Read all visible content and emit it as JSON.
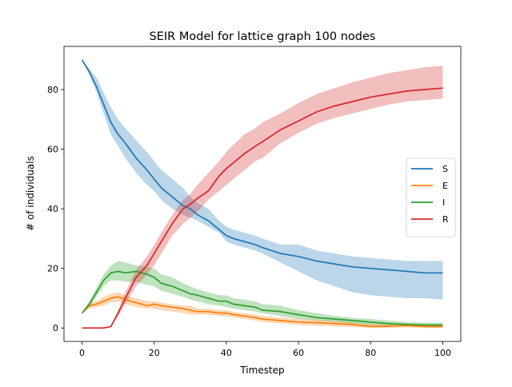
{
  "chart_data": {
    "type": "line",
    "title": "SEIR Model for lattice graph 100 nodes",
    "xlabel": "Timestep",
    "ylabel": "# of individuals",
    "xlim": [
      -5,
      105
    ],
    "ylim": [
      -4.5,
      94.5
    ],
    "xticks": [
      0,
      20,
      40,
      60,
      80,
      100
    ],
    "yticks": [
      0,
      20,
      40,
      60,
      80
    ],
    "grid": false,
    "legend_position": "center-right",
    "series": [
      {
        "name": "S",
        "color": "#1f77b4",
        "x": [
          0,
          2,
          4,
          6,
          8,
          10,
          12,
          15,
          18,
          20,
          22,
          25,
          28,
          30,
          32,
          35,
          38,
          40,
          42,
          45,
          48,
          50,
          55,
          60,
          65,
          70,
          75,
          80,
          85,
          90,
          95,
          100
        ],
        "y": [
          90,
          86,
          81,
          75,
          69,
          65,
          62,
          57,
          53,
          50,
          47,
          44,
          41,
          40,
          38,
          36,
          33,
          31,
          30,
          29,
          28,
          27,
          25,
          24,
          22.5,
          21.5,
          20.5,
          20,
          19.5,
          19,
          18.5,
          18.5
        ],
        "lower": [
          90,
          85,
          79,
          72,
          65,
          61,
          57,
          52,
          48,
          46,
          43,
          40,
          38,
          37,
          36,
          34,
          32,
          29,
          28,
          27,
          26,
          25,
          22,
          19,
          16,
          14,
          12,
          11,
          10.5,
          10,
          10,
          9.5
        ],
        "upper": [
          90,
          87,
          84,
          79,
          74,
          70,
          67,
          63,
          59,
          56,
          53,
          50,
          47,
          44,
          42,
          40,
          36,
          34,
          33,
          32,
          31,
          30,
          28,
          28,
          26,
          25,
          24,
          23.5,
          23,
          22.5,
          22.5,
          22.5
        ]
      },
      {
        "name": "E",
        "color": "#ff7f0e",
        "x": [
          0,
          2,
          4,
          6,
          8,
          10,
          12,
          15,
          18,
          20,
          22,
          25,
          28,
          30,
          32,
          35,
          38,
          40,
          42,
          45,
          48,
          50,
          55,
          60,
          65,
          70,
          75,
          80,
          85,
          90,
          95,
          100
        ],
        "y": [
          5,
          7.5,
          8,
          9,
          10,
          10.5,
          9.5,
          8.5,
          7.5,
          8,
          7.5,
          7,
          6.5,
          6,
          5.5,
          5.5,
          5,
          5,
          4.5,
          4,
          3.5,
          3,
          2.5,
          2,
          1.8,
          1.5,
          1.2,
          0.5,
          0.6,
          0.8,
          0.5,
          0.5
        ],
        "lower": [
          5,
          6.5,
          7,
          7.5,
          8.5,
          9,
          8,
          7,
          6.5,
          6.5,
          6,
          5.5,
          5,
          4.5,
          4.5,
          4.5,
          4,
          4,
          3.5,
          3,
          2.5,
          2,
          1.5,
          1,
          0.8,
          0.5,
          0.3,
          0,
          0,
          0.2,
          0,
          0
        ],
        "upper": [
          5,
          8.5,
          9,
          10.5,
          11.5,
          12,
          11,
          10,
          9,
          9,
          8.5,
          8,
          7.5,
          7.5,
          6.5,
          6.5,
          6,
          6,
          5.5,
          5,
          4.5,
          4,
          3.5,
          3,
          2.8,
          2.5,
          2,
          1.5,
          1.5,
          1.5,
          1.2,
          1.2
        ]
      },
      {
        "name": "I",
        "color": "#2ca02c",
        "x": [
          0,
          2,
          4,
          6,
          8,
          10,
          12,
          15,
          18,
          20,
          22,
          25,
          28,
          30,
          32,
          35,
          38,
          40,
          42,
          45,
          48,
          50,
          55,
          60,
          65,
          70,
          75,
          80,
          85,
          90,
          95,
          100
        ],
        "y": [
          5,
          8,
          12,
          16,
          18.5,
          19,
          18.5,
          19,
          18,
          17,
          15,
          14,
          12.5,
          11.5,
          11,
          10,
          9,
          9,
          8,
          7.5,
          7,
          6,
          5.5,
          4.5,
          3.5,
          3,
          2.5,
          2,
          1.5,
          1.2,
          1,
          1
        ],
        "lower": [
          5,
          7,
          10.5,
          14,
          16,
          16,
          15.5,
          15.5,
          14.5,
          14,
          12.5,
          11.5,
          10.5,
          9.5,
          9,
          8,
          7.5,
          7,
          6.5,
          6,
          5.5,
          5,
          4,
          3,
          2.5,
          2,
          1.5,
          1,
          0.8,
          0.5,
          0.5,
          0.5
        ],
        "upper": [
          5,
          9,
          13.5,
          18,
          21,
          22.5,
          22,
          21,
          20.5,
          20,
          18,
          17,
          15,
          14,
          13,
          12,
          11,
          11,
          10,
          9.5,
          9,
          8,
          7.5,
          6,
          5,
          4,
          3.5,
          3,
          2.5,
          2,
          1.8,
          1.8
        ]
      },
      {
        "name": "R",
        "color": "#d62728",
        "x": [
          0,
          2,
          4,
          6,
          8,
          10,
          12,
          15,
          18,
          20,
          22,
          25,
          28,
          30,
          32,
          35,
          38,
          40,
          42,
          45,
          48,
          50,
          55,
          60,
          65,
          70,
          75,
          80,
          85,
          90,
          95,
          100
        ],
        "y": [
          0,
          0,
          0,
          0,
          0.5,
          5,
          10,
          17,
          21,
          25,
          29,
          35,
          40,
          41.5,
          43.5,
          46,
          51,
          53.5,
          55.5,
          58.5,
          61,
          62.5,
          66.5,
          69.5,
          72.5,
          74.5,
          76,
          77.5,
          78.5,
          79.5,
          80,
          80.5
        ],
        "lower": [
          0,
          0,
          0,
          0,
          0.3,
          4,
          8,
          14,
          18,
          21,
          25,
          31,
          35,
          37,
          39,
          43,
          46,
          48,
          50,
          53,
          56,
          57,
          62,
          65.5,
          68.5,
          70.5,
          72,
          73.5,
          75,
          76,
          76.5,
          77
        ],
        "upper": [
          0,
          0,
          0,
          0,
          0.8,
          6,
          12,
          19.5,
          24,
          28,
          32,
          38,
          43,
          45,
          48,
          52,
          56,
          59,
          61.5,
          65,
          67,
          69,
          72,
          75.5,
          78.5,
          80.5,
          82.5,
          84,
          85.5,
          86.5,
          87.5,
          88
        ]
      }
    ]
  }
}
